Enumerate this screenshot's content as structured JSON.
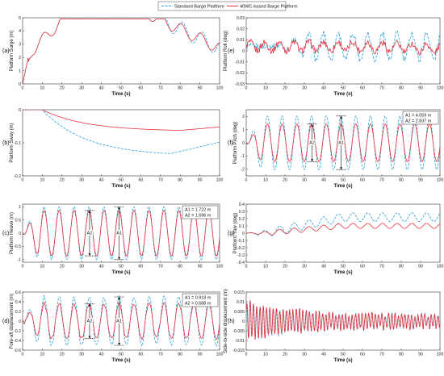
{
  "legend": {
    "entries": [
      {
        "label": "Standard Barge Platform",
        "color": "#2a9fd8",
        "dash": true
      },
      {
        "label": "40WC-based Barge Platform",
        "color": "#e8303a",
        "dash": false
      }
    ],
    "placement": "top-center"
  },
  "chart_data": [
    {
      "id": "a",
      "panel_label": "(a)",
      "type": "line",
      "xlabel": "Time (s)",
      "ylabel": "Platform Surge (m)",
      "xlim": [
        0,
        100
      ],
      "ylim": [
        0,
        5
      ],
      "xticks": [
        0,
        10,
        20,
        30,
        40,
        50,
        60,
        70,
        80,
        90,
        100
      ],
      "yticks": [
        0,
        1,
        2,
        3,
        4,
        5
      ],
      "ytick_labels": [
        "0",
        "1",
        "2",
        "3",
        "4",
        "5"
      ],
      "model": {
        "kind": "surge"
      },
      "annotations": []
    },
    {
      "id": "b",
      "panel_label": "(b)",
      "type": "line",
      "xlabel": "Time (s)",
      "ylabel": "Platform Sway (m)",
      "xlim": [
        0,
        100
      ],
      "ylim": [
        -0.2,
        0
      ],
      "xticks": [
        0,
        10,
        20,
        30,
        40,
        50,
        60,
        70,
        80,
        90,
        100
      ],
      "yticks": [
        0,
        -0.1,
        -0.2
      ],
      "ytick_labels": [
        "0",
        "-0.1",
        "-0.2"
      ],
      "model": {
        "kind": "sway"
      },
      "annotations": []
    },
    {
      "id": "c",
      "panel_label": "(c)",
      "type": "line",
      "xlabel": "Time (s)",
      "ylabel": "Platform Heave (m)",
      "xlim": [
        0,
        100
      ],
      "ylim": [
        -1.1,
        1.1
      ],
      "xticks": [
        0,
        10,
        20,
        30,
        40,
        50,
        60,
        70,
        80,
        90,
        100
      ],
      "yticks": [
        1,
        0.5,
        0,
        -0.5,
        -1
      ],
      "ytick_labels": [
        "1",
        "0.5",
        "0",
        "-0.5",
        "-1"
      ],
      "model": {
        "kind": "heave",
        "period": 7.6,
        "std_amp": 1.0,
        "wc_amp": 0.86
      },
      "annotations": [
        {
          "text": "A1 = 1.722 m"
        },
        {
          "text": "A2 = 1.696 m"
        }
      ],
      "arrow_labels": [
        "A1",
        "A2"
      ]
    },
    {
      "id": "d",
      "panel_label": "(d)",
      "type": "line",
      "xlabel": "Time (s)",
      "ylabel": "Fore-aft displacement  (m)",
      "xlim": [
        0,
        100
      ],
      "ylim": [
        -0.6,
        0.6
      ],
      "xticks": [
        0,
        10,
        20,
        30,
        40,
        50,
        60,
        70,
        80,
        90,
        100
      ],
      "yticks": [
        0.6,
        0.4,
        0.2,
        0,
        -0.2,
        -0.4,
        -0.6
      ],
      "ytick_labels": [
        "0.6",
        "0.4",
        "0.2",
        "0",
        "-0.2",
        "-0.4",
        "-0.6"
      ],
      "model": {
        "kind": "foreaft",
        "period": 7.6,
        "std_amp": 0.5,
        "wc_amp": 0.36
      },
      "annotations": [
        {
          "text": "A1 = 0.918 m"
        },
        {
          "text": "A2 = 0.688 m"
        }
      ],
      "arrow_labels": [
        "A1",
        "A2"
      ]
    },
    {
      "id": "e",
      "panel_label": "(e)",
      "type": "line",
      "xlabel": "Time (s)",
      "ylabel": "Platform Roll (deg)",
      "xlim": [
        0,
        100
      ],
      "ylim": [
        -0.03,
        0.03
      ],
      "xticks": [
        0,
        10,
        20,
        30,
        40,
        50,
        60,
        70,
        80,
        90,
        100
      ],
      "yticks": [
        0.03,
        0.02,
        0.01,
        0,
        -0.01,
        -0.02,
        -0.03
      ],
      "ytick_labels": [
        "0.03",
        "0.02",
        "0.01",
        "0",
        "-0.01",
        "-0.02",
        "-0.03"
      ],
      "model": {
        "kind": "roll"
      },
      "annotations": []
    },
    {
      "id": "f",
      "panel_label": "(f)",
      "type": "line",
      "xlabel": "Time (s)",
      "ylabel": "Platform Pitch (deg)",
      "xlim": [
        0,
        100
      ],
      "ylim": [
        -2.5,
        2.5
      ],
      "xticks": [
        0,
        10,
        20,
        30,
        40,
        50,
        60,
        70,
        80,
        90,
        100
      ],
      "yticks": [
        2,
        1,
        0,
        -1,
        -2
      ],
      "ytick_labels": [
        "2",
        "1",
        "0",
        "-1",
        "-2"
      ],
      "model": {
        "kind": "pitch",
        "period": 7.6,
        "std_amp": 2.03,
        "wc_amp": 1.42
      },
      "annotations": [
        {
          "text": "A1 = 4.059 m"
        },
        {
          "text": "A2 = 2.837 m"
        }
      ],
      "arrow_labels": [
        "A1",
        "A2"
      ]
    },
    {
      "id": "g",
      "panel_label": "(g)",
      "type": "line",
      "xlabel": "Time (s)",
      "ylabel": "Platform Yaw (deg)",
      "xlim": [
        0,
        100
      ],
      "ylim": [
        -0.4,
        0.4
      ],
      "xticks": [
        0,
        10,
        20,
        30,
        40,
        50,
        60,
        70,
        80,
        90,
        100
      ],
      "yticks": [
        0.4,
        0.3,
        0.2,
        0.1,
        0,
        -0.1,
        -0.2,
        -0.3,
        -0.4
      ],
      "ytick_labels": [
        "0.4",
        "0.3",
        "0.2",
        "0.1",
        "0",
        "-0.1",
        "-0.2",
        "-0.3",
        "-0.4"
      ],
      "model": {
        "kind": "yaw"
      },
      "annotations": []
    },
    {
      "id": "h",
      "panel_label": "(h)",
      "type": "line",
      "xlabel": "Time (s)",
      "ylabel": "Side-to-side displacement  (m)",
      "xlim": [
        0,
        100
      ],
      "ylim": [
        -0.015,
        0.015
      ],
      "xticks": [
        0,
        10,
        20,
        30,
        40,
        50,
        60,
        70,
        80,
        90,
        100
      ],
      "yticks": [
        0.015,
        0.01,
        0.005,
        0,
        -0.005,
        -0.01,
        -0.015
      ],
      "ytick_labels": [
        "0.015",
        "0.01",
        "0.005",
        "0",
        "-0.005",
        "-0.01",
        "-0.015"
      ],
      "model": {
        "kind": "side"
      },
      "annotations": []
    }
  ]
}
